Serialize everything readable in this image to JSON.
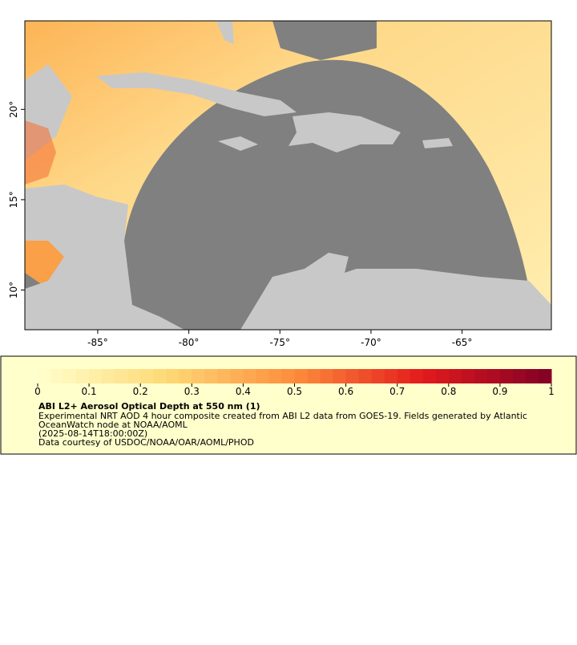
{
  "map": {
    "xlim": [
      -89,
      -60.1
    ],
    "ylim": [
      7.8,
      24.9
    ],
    "xticks": [
      {
        "value": -85,
        "label": "-85°"
      },
      {
        "value": -80,
        "label": "-80°"
      },
      {
        "value": -75,
        "label": "-75°"
      },
      {
        "value": -70,
        "label": "-70°"
      },
      {
        "value": -65,
        "label": "-65°"
      }
    ],
    "yticks": [
      {
        "value": 10,
        "label": "10°"
      },
      {
        "value": 15,
        "label": "15°"
      },
      {
        "value": 20,
        "label": "20°"
      }
    ]
  },
  "legend": {
    "range": [
      0,
      1
    ],
    "ticks": [
      0,
      0.1,
      0.2,
      0.3,
      0.4,
      0.5,
      0.6,
      0.7,
      0.8,
      0.9,
      1
    ],
    "title": "ABI L2+ Aerosol Optical Depth at 550 nm (1)",
    "lines": [
      "Experimental NRT AOD 4 hour composite created from ABI L2 data from GOES-19. Fields generated by Atlantic",
      "OceanWatch node at NOAA/AOML",
      "(2025-08-14T18:00:00Z)",
      "Data courtesy of USDOC/NOAA/OAR/AOML/PHOD"
    ]
  }
}
